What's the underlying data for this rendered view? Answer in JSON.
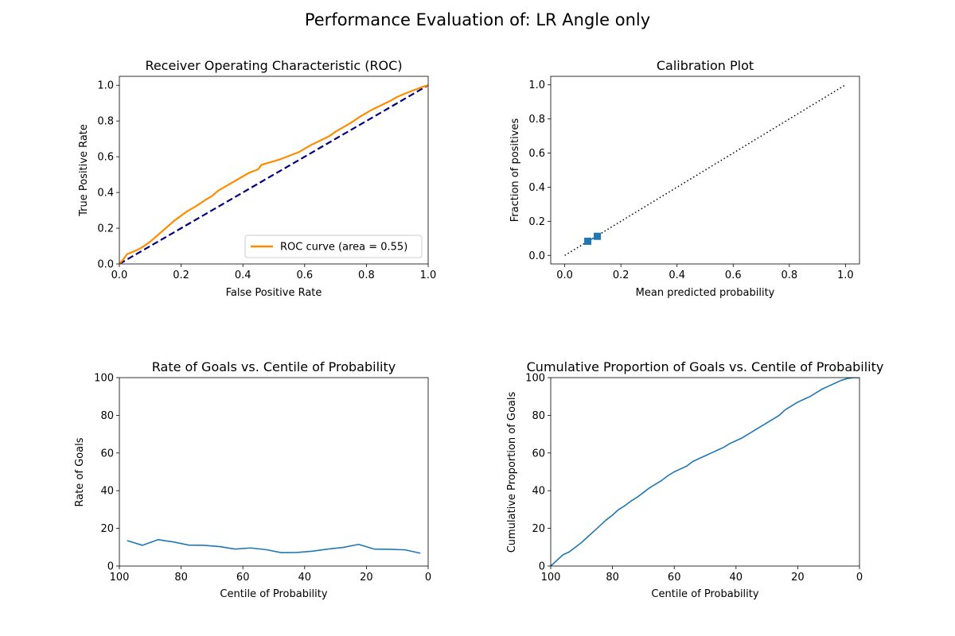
{
  "figure": {
    "title": "Performance Evaluation of: LR Angle only"
  },
  "colors": {
    "roc": "#ff8c00",
    "chance": "#000080",
    "series": "#1f77b4",
    "ref": "#000000"
  },
  "chart_data": [
    {
      "type": "line",
      "title": "Receiver Operating Characteristic (ROC)",
      "xlabel": "False Positive Rate",
      "ylabel": "True Positive Rate",
      "xlim": [
        0.0,
        1.0
      ],
      "ylim": [
        0.0,
        1.05
      ],
      "xticks": [
        "0.0",
        "0.2",
        "0.4",
        "0.6",
        "0.8",
        "1.0"
      ],
      "yticks": [
        "0.0",
        "0.2",
        "0.4",
        "0.6",
        "0.8",
        "1.0"
      ],
      "legend": {
        "placement": "lower-right",
        "label": "ROC curve (area = 0.55)"
      },
      "series": [
        {
          "name": "ROC curve (area = 0.55)",
          "x": [
            0,
            0.01,
            0.025,
            0.04,
            0.06,
            0.08,
            0.1,
            0.12,
            0.14,
            0.16,
            0.18,
            0.2,
            0.22,
            0.25,
            0.28,
            0.3,
            0.32,
            0.35,
            0.38,
            0.4,
            0.42,
            0.45,
            0.46,
            0.5,
            0.52,
            0.55,
            0.58,
            0.6,
            0.62,
            0.65,
            0.68,
            0.7,
            0.72,
            0.75,
            0.78,
            0.8,
            0.82,
            0.85,
            0.88,
            0.9,
            0.92,
            0.95,
            0.98,
            1.0
          ],
          "y": [
            0,
            0.02,
            0.055,
            0.065,
            0.08,
            0.1,
            0.125,
            0.155,
            0.185,
            0.215,
            0.245,
            0.27,
            0.295,
            0.325,
            0.36,
            0.38,
            0.41,
            0.44,
            0.47,
            0.49,
            0.51,
            0.53,
            0.555,
            0.575,
            0.585,
            0.605,
            0.625,
            0.645,
            0.665,
            0.69,
            0.715,
            0.74,
            0.76,
            0.79,
            0.825,
            0.845,
            0.865,
            0.89,
            0.915,
            0.935,
            0.95,
            0.97,
            0.99,
            1.0
          ]
        }
      ],
      "reference_line": {
        "x": [
          0,
          1
        ],
        "y": [
          0,
          1
        ]
      }
    },
    {
      "type": "scatter",
      "title": "Calibration Plot",
      "xlabel": "Mean predicted probability",
      "ylabel": "Fraction of positives",
      "xlim": [
        -0.05,
        1.05
      ],
      "ylim": [
        -0.05,
        1.05
      ],
      "xticks": [
        "0.0",
        "0.2",
        "0.4",
        "0.6",
        "0.8",
        "1.0"
      ],
      "yticks": [
        "0.0",
        "0.2",
        "0.4",
        "0.6",
        "0.8",
        "1.0"
      ],
      "series": [
        {
          "x": [
            0.082,
            0.116
          ],
          "y": [
            0.083,
            0.112
          ]
        }
      ],
      "reference_line": {
        "x": [
          0,
          1
        ],
        "y": [
          0,
          1
        ]
      }
    },
    {
      "type": "line",
      "title": "Rate of Goals vs. Centile of Probability",
      "xlabel": "Centile of Probability",
      "ylabel": "Rate of Goals",
      "xlim": [
        100,
        0
      ],
      "ylim": [
        0,
        100
      ],
      "xticks": [
        "100",
        "80",
        "60",
        "40",
        "20",
        "0"
      ],
      "yticks": [
        "0",
        "20",
        "40",
        "60",
        "80",
        "100"
      ],
      "series": [
        {
          "x": [
            97.5,
            92.5,
            87.5,
            82.5,
            77.5,
            72.5,
            67.5,
            62.5,
            57.5,
            52.5,
            47.5,
            42.5,
            37.5,
            32.5,
            27.5,
            22.5,
            17.5,
            12.5,
            7.5,
            2.5
          ],
          "y": [
            13.5,
            11.0,
            14.0,
            12.8,
            11.1,
            11.0,
            10.3,
            9.0,
            9.6,
            8.7,
            7.1,
            7.2,
            7.9,
            9.0,
            9.9,
            11.5,
            9.0,
            8.9,
            8.6,
            6.8
          ]
        }
      ]
    },
    {
      "type": "line",
      "title": "Cumulative Proportion of Goals vs. Centile of Probability",
      "xlabel": "Centile of Probability",
      "ylabel": "Cumulative Proportion of Goals",
      "xlim": [
        100,
        0
      ],
      "ylim": [
        0,
        100
      ],
      "xticks": [
        "100",
        "80",
        "60",
        "40",
        "20",
        "0"
      ],
      "yticks": [
        "0",
        "20",
        "40",
        "60",
        "80",
        "100"
      ],
      "series": [
        {
          "x": [
            100,
            98,
            96,
            94,
            92,
            90,
            88,
            86,
            84,
            82,
            80,
            78,
            76,
            74,
            72,
            70,
            68,
            66,
            64,
            62,
            60,
            58,
            56,
            54,
            52,
            50,
            48,
            46,
            44,
            42,
            40,
            38,
            36,
            34,
            32,
            30,
            28,
            26,
            24,
            22,
            20,
            18,
            16,
            14,
            12,
            10,
            8,
            6,
            4,
            2,
            0
          ],
          "y": [
            0,
            3,
            6,
            7.5,
            10,
            12.5,
            15.5,
            18.5,
            21.5,
            24.5,
            27,
            30,
            32,
            34.5,
            36.5,
            39,
            41.5,
            43.5,
            45.5,
            48,
            50,
            51.5,
            53,
            55.5,
            57,
            58.5,
            60,
            61.5,
            63,
            65,
            66.5,
            68,
            70,
            72,
            74,
            76,
            78,
            80,
            83,
            85,
            87,
            88.5,
            90,
            92,
            94,
            95.5,
            97,
            98.5,
            99.5,
            100,
            100
          ]
        }
      ]
    }
  ]
}
